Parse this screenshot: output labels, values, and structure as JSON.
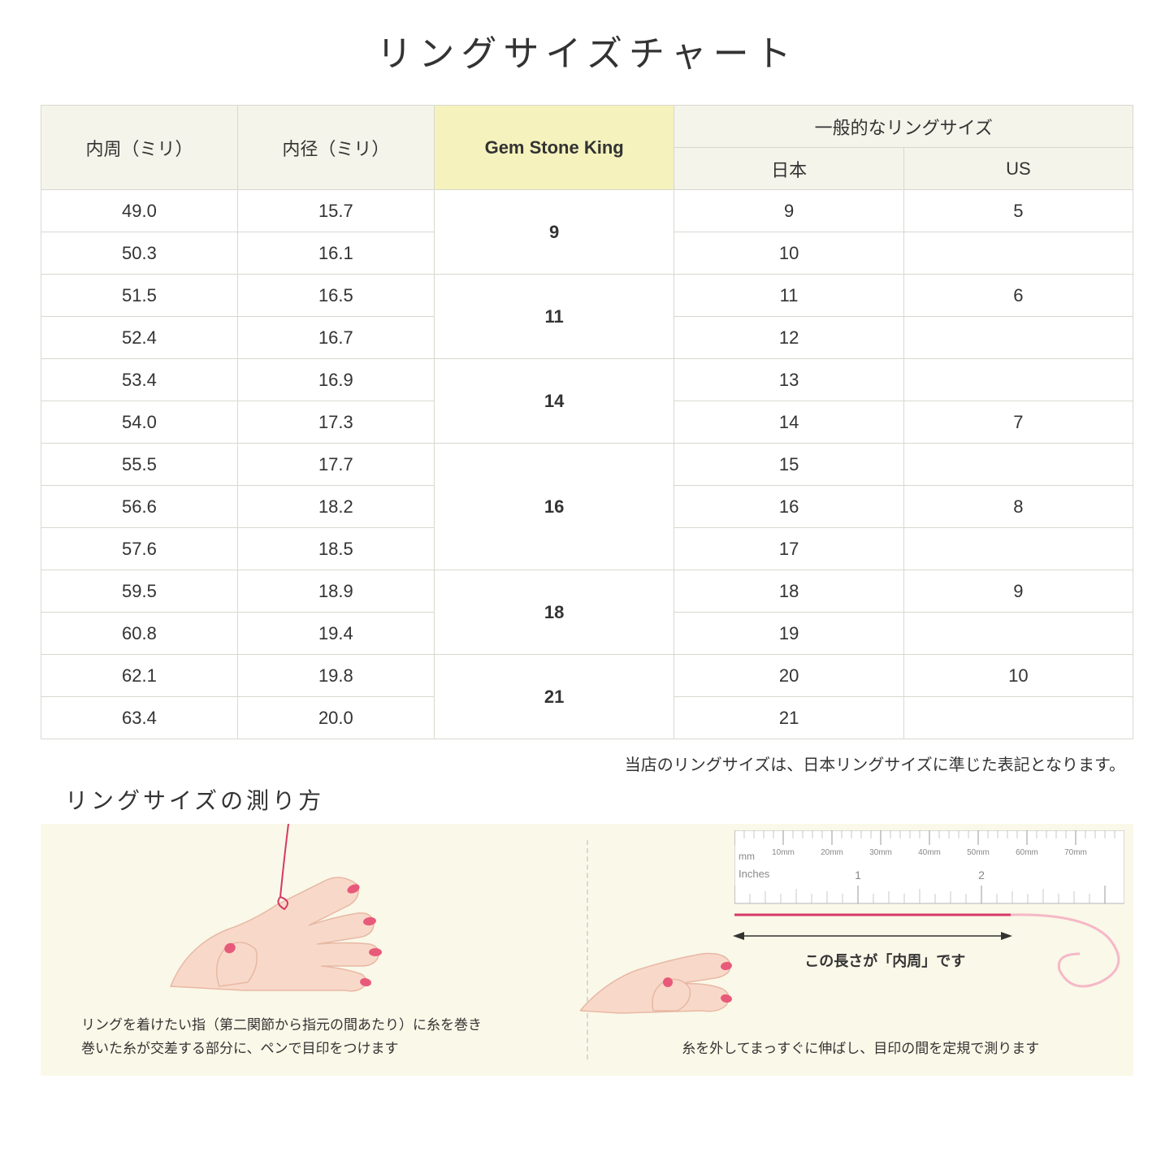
{
  "title": "リングサイズチャート",
  "headers": {
    "circumference": "内周（ミリ）",
    "diameter": "内径（ミリ）",
    "gsk": "Gem Stone King",
    "general": "一般的なリングサイズ",
    "japan": "日本",
    "us": "US"
  },
  "rows": [
    {
      "c": "49.0",
      "d": "15.7",
      "g": "9",
      "gspan": 2,
      "j": "9",
      "u": "5"
    },
    {
      "c": "50.3",
      "d": "16.1",
      "j": "10",
      "u": ""
    },
    {
      "c": "51.5",
      "d": "16.5",
      "g": "11",
      "gspan": 2,
      "j": "11",
      "u": "6"
    },
    {
      "c": "52.4",
      "d": "16.7",
      "j": "12",
      "u": ""
    },
    {
      "c": "53.4",
      "d": "16.9",
      "g": "14",
      "gspan": 2,
      "j": "13",
      "u": ""
    },
    {
      "c": "54.0",
      "d": "17.3",
      "j": "14",
      "u": "7"
    },
    {
      "c": "55.5",
      "d": "17.7",
      "g": "16",
      "gspan": 3,
      "j": "15",
      "u": ""
    },
    {
      "c": "56.6",
      "d": "18.2",
      "j": "16",
      "u": "8"
    },
    {
      "c": "57.6",
      "d": "18.5",
      "j": "17",
      "u": ""
    },
    {
      "c": "59.5",
      "d": "18.9",
      "g": "18",
      "gspan": 2,
      "j": "18",
      "u": "9"
    },
    {
      "c": "60.8",
      "d": "19.4",
      "j": "19",
      "u": ""
    },
    {
      "c": "62.1",
      "d": "19.8",
      "g": "21",
      "gspan": 2,
      "j": "20",
      "u": "10"
    },
    {
      "c": "63.4",
      "d": "20.0",
      "j": "21",
      "u": ""
    }
  ],
  "note": "当店のリングサイズは、日本リングサイズに準じた表記となります。",
  "measure": {
    "title": "リングサイズの測り方",
    "leftCaption": "リングを着けたい指（第二関節から指元の間あたり）に糸を巻き\n巻いた糸が交差する部分に、ペンで目印をつけます",
    "rightCaption": "糸を外してまっすぐに伸ばし、目印の間を定規で測ります",
    "rulerLabel": "この長さが「内周」です",
    "rulerUnits": {
      "mm": "mm",
      "inches": "Inches"
    },
    "rulerMmLabels": [
      "10mm",
      "20mm",
      "30mm",
      "40mm",
      "50mm",
      "60mm",
      "70mm"
    ],
    "rulerInchLabels": [
      "1",
      "2"
    ]
  },
  "colors": {
    "headerBg": "#f4f4ea",
    "highlightBg": "#f5f2bd",
    "border": "#d8d8d0",
    "measureBg": "#faf8e8",
    "skin": "#f8d9c9",
    "skinShadow": "#e8b8a5",
    "nail": "#e85a7a",
    "thread": "#d63864",
    "rulerBg": "#ffffff",
    "rulerBorder": "#cccccc"
  },
  "columnWidths": [
    "18%",
    "18%",
    "22%",
    "21%",
    "21%"
  ]
}
